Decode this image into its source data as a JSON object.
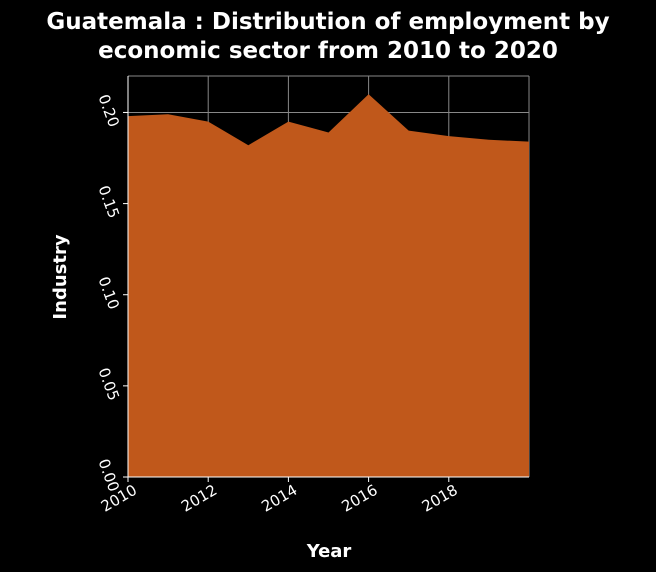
{
  "chart_data": {
    "type": "area",
    "title_line1": "Guatemala : Distribution of employment by",
    "title_line2": "economic sector from 2010 to 2020",
    "xlabel": "Year",
    "ylabel": "Industry",
    "x": [
      2010,
      2011,
      2012,
      2013,
      2014,
      2015,
      2016,
      2017,
      2018,
      2019,
      2020
    ],
    "series": [
      {
        "values": [
          0.198,
          0.199,
          0.195,
          0.182,
          0.195,
          0.189,
          0.21,
          0.19,
          0.187,
          0.185,
          0.184
        ]
      }
    ],
    "xlim": [
      2010,
      2020
    ],
    "ylim": [
      0,
      0.22
    ],
    "xticks": [
      2010,
      2012,
      2014,
      2016,
      2018
    ],
    "xtick_labels": [
      "2010",
      "2012",
      "2014",
      "2016",
      "2018"
    ],
    "yticks": [
      0,
      0.05,
      0.1,
      0.15,
      0.2
    ],
    "ytick_labels": [
      "0.00",
      "0.05",
      "0.10",
      "0.15",
      "0.20"
    ],
    "grid": true,
    "colors": {
      "fill": "#c0581b",
      "grid": "#888888",
      "background": "#000000",
      "text": "#ffffff"
    }
  }
}
